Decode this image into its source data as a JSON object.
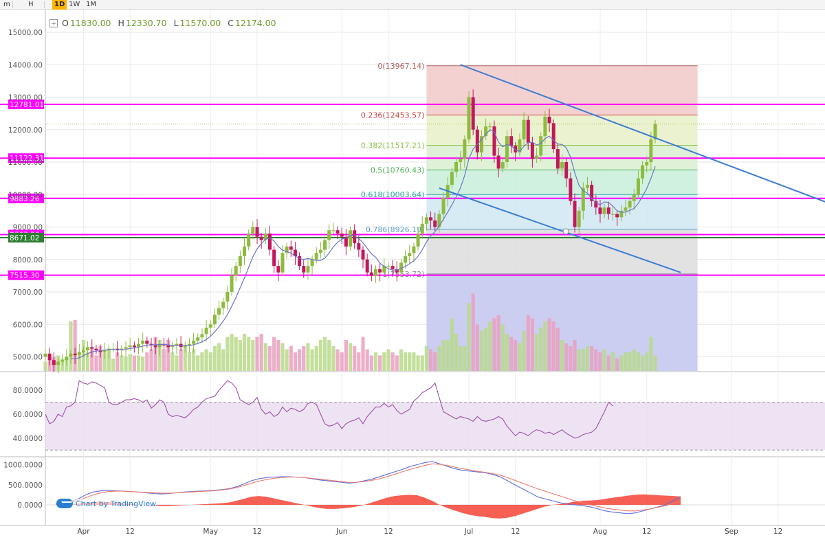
{
  "toolbar": {
    "items": [
      "m",
      "H",
      "1D",
      "1W",
      "1M"
    ],
    "active": "1D"
  },
  "ohlc": {
    "open_label": "O",
    "open": "11830.00",
    "high_label": "H",
    "high": "12330.70",
    "low_label": "L",
    "low": "11570.00",
    "close_label": "C",
    "close": "12174.00"
  },
  "watermark": "Chart by TradingView",
  "colors": {
    "up": "#8dbb3f",
    "down": "#c2185b",
    "level": "#ff00ff",
    "trend": "#3a7bd5",
    "ma": "#6a75c9"
  },
  "chart_data": [
    {
      "type": "candlestick",
      "title": "",
      "ylim": [
        4700,
        15500
      ],
      "y_ticks": [
        "15000.00",
        "14000.00",
        "13000.00",
        "12000.00",
        "11000.00",
        "10000.00",
        "9000.00",
        "8000.00",
        "7000.00",
        "6000.00",
        "5000.00"
      ],
      "y_tick_values": [
        15000,
        14000,
        13000,
        12000,
        11000,
        10000,
        9000,
        8000,
        7000,
        6000,
        5000
      ],
      "x_range_days": [
        0,
        150
      ],
      "x_ticks": [
        {
          "day": 9,
          "label": "Apr"
        },
        {
          "day": 20,
          "label": "12"
        },
        {
          "day": 39,
          "label": "May"
        },
        {
          "day": 50,
          "label": "12"
        },
        {
          "day": 70,
          "label": "Jun"
        },
        {
          "day": 81,
          "label": "12"
        },
        {
          "day": 100,
          "label": "Jul"
        },
        {
          "day": 111,
          "label": "12"
        },
        {
          "day": 131,
          "label": "Aug"
        },
        {
          "day": 142,
          "label": "12"
        },
        {
          "day": 162,
          "label": "Sep"
        },
        {
          "day": 173,
          "label": "12"
        }
      ],
      "candles_close": [
        5100,
        4900,
        4750,
        4850,
        4900,
        5000,
        5100,
        5050,
        5150,
        5200,
        5300,
        5250,
        5200,
        5150,
        5200,
        5250,
        5250,
        5200,
        5250,
        5300,
        5350,
        5300,
        5400,
        5500,
        5400,
        5350,
        5300,
        5400,
        5350,
        5300,
        5350,
        5400,
        5300,
        5350,
        5400,
        5500,
        5600,
        5700,
        5900,
        6000,
        6300,
        6500,
        6700,
        7000,
        7500,
        7800,
        8100,
        8400,
        8800,
        9000,
        8700,
        8600,
        8800,
        8300,
        7800,
        7600,
        8200,
        8400,
        8300,
        8100,
        7800,
        7600,
        7800,
        8000,
        8200,
        8300,
        8600,
        8900,
        8900,
        8800,
        8700,
        8400,
        8900,
        8500,
        8300,
        8000,
        7600,
        7500,
        7700,
        7600,
        7800,
        7800,
        7700,
        7600,
        7900,
        8100,
        8200,
        8400,
        8800,
        9100,
        9300,
        9200,
        9000,
        9400,
        9900,
        10300,
        10700,
        11000,
        11100,
        11700,
        13000,
        12000,
        11300,
        11800,
        12100,
        12100,
        11200,
        10800,
        11000,
        11800,
        11500,
        11300,
        11700,
        12300,
        11600,
        11100,
        11200,
        11800,
        12400,
        12200,
        11400,
        10800,
        11000,
        10500,
        9800,
        9000,
        9500,
        10200,
        10300,
        9800,
        9600,
        9400,
        9600,
        9400,
        9400,
        9300,
        9500,
        9600,
        9800,
        10000,
        10500,
        10900,
        11000,
        11700,
        12174
      ],
      "fib_levels": [
        {
          "ratio": "0",
          "price": 13967.14,
          "label": "0(13967.14)"
        },
        {
          "ratio": "0.236",
          "price": 12453.57,
          "label": "0.236(12453.57)"
        },
        {
          "ratio": "0.382",
          "price": 11517.21,
          "label": "0.382(11517.21)"
        },
        {
          "ratio": "0.5",
          "price": 10760.43,
          "label": "0.5(10760.43)"
        },
        {
          "ratio": "0.618",
          "price": 10003.64,
          "label": "0.618(10003.64)"
        },
        {
          "ratio": "0.786",
          "price": 8926.19,
          "label": "0.786(8926.19)"
        },
        {
          "ratio": "1",
          "price": 7553.72,
          "label": "1(7553.72)"
        }
      ],
      "fib_range_days": [
        90,
        154
      ],
      "horizontal_levels": [
        {
          "price": 12781.01,
          "label": "12781.01",
          "color": "#ff00ff"
        },
        {
          "price": 11122.31,
          "label": "11122.31",
          "color": "#ff00ff"
        },
        {
          "price": 9883.26,
          "label": "9883.26",
          "color": "#ff00ff"
        },
        {
          "price": 8767.36,
          "label": "8767.36",
          "color": "#ff00ff"
        },
        {
          "price": 8671.02,
          "label": "8671.02",
          "color": "#2e7d32"
        },
        {
          "price": 7515.3,
          "label": "7515.30",
          "color": "#ff00ff"
        }
      ],
      "partial_tick_label": "9883.26",
      "trendlines": [
        {
          "from": [
            98,
            14000
          ],
          "to": [
            200,
            9000
          ]
        },
        {
          "from": [
            93,
            10200
          ],
          "to": [
            150,
            7600
          ]
        }
      ],
      "current_price": 12174.0,
      "volume": [
        0.3,
        0.5,
        0.45,
        0.5,
        0.4,
        0.45,
        1.6,
        1.65,
        0.5,
        1.0,
        0.6,
        0.7,
        0.5,
        0.8,
        0.6,
        0.7,
        0.4,
        0.6,
        0.5,
        0.45,
        0.55,
        0.5,
        0.5,
        0.45,
        0.6,
        0.7,
        1.1,
        1.0,
        0.7,
        1.0,
        0.6,
        0.5,
        0.7,
        0.8,
        0.6,
        0.7,
        0.5,
        0.6,
        0.7,
        0.6,
        0.8,
        0.9,
        0.7,
        1.1,
        1.2,
        1.1,
        1.0,
        1.2,
        1.1,
        1.0,
        1.1,
        1.2,
        0.9,
        0.8,
        1.1,
        1.0,
        0.9,
        0.7,
        0.8,
        0.6,
        0.7,
        0.8,
        0.9,
        0.7,
        0.8,
        1.0,
        1.1,
        1.0,
        0.8,
        0.7,
        0.6,
        1.0,
        0.9,
        0.8,
        0.6,
        1.1,
        0.7,
        0.5,
        0.6,
        0.5,
        0.6,
        0.7,
        0.6,
        0.5,
        0.7,
        0.6,
        0.6,
        0.6,
        0.5,
        0.5,
        0.8,
        0.7,
        0.6,
        0.8,
        1.0,
        1.0,
        1.7,
        1.2,
        0.8,
        0.8,
        2.2,
        2.5,
        1.5,
        1.3,
        1.4,
        1.6,
        1.7,
        1.8,
        1.5,
        1.2,
        1.1,
        1.0,
        0.9,
        1.3,
        1.8,
        1.7,
        1.2,
        1.4,
        1.6,
        1.7,
        1.6,
        1.4,
        1.0,
        0.9,
        0.8,
        1.0,
        0.7,
        0.7,
        0.8,
        0.8,
        0.7,
        0.6,
        0.7,
        0.5,
        0.6,
        0.4,
        0.5,
        0.6,
        0.6,
        0.7,
        0.6,
        0.5,
        0.6,
        1.1,
        0.5
      ]
    },
    {
      "type": "line",
      "series": [
        {
          "name": "",
          "values": [
            60,
            52,
            54,
            60,
            58,
            66,
            67,
            70,
            88,
            86,
            85,
            87,
            86,
            84,
            82,
            70,
            68,
            68,
            70,
            72,
            72,
            73,
            72,
            70,
            72,
            65,
            68,
            72,
            70,
            60,
            58,
            59,
            58,
            57,
            60,
            64,
            66,
            70,
            73,
            74,
            75,
            80,
            84,
            88,
            86,
            82,
            72,
            70,
            68,
            70,
            74,
            64,
            60,
            62,
            58,
            60,
            66,
            62,
            65,
            64,
            62,
            64,
            69,
            70,
            68,
            60,
            52,
            50,
            51,
            53,
            48,
            52,
            54,
            55,
            57,
            52,
            58,
            62,
            66,
            66,
            69,
            66,
            68,
            63,
            60,
            62,
            64,
            71,
            74,
            78,
            80,
            82,
            86,
            74,
            62,
            60,
            58,
            56,
            58,
            57,
            56,
            54,
            58,
            55,
            54,
            55,
            56,
            58,
            56,
            50,
            46,
            42,
            45,
            44,
            42,
            45,
            47,
            46,
            44,
            45,
            43,
            45,
            47,
            44,
            42,
            40,
            41,
            43,
            44,
            45,
            48,
            55,
            62,
            70,
            67
          ]
        }
      ],
      "ylim": [
        25,
        95
      ],
      "y_ticks": [
        "80.0000",
        "60.0000",
        "40.0000"
      ],
      "y_tick_values": [
        80,
        60,
        40
      ],
      "band": [
        30,
        70
      ]
    },
    {
      "type": "line",
      "series": [
        {
          "name": "",
          "values": [
            20,
            40,
            80,
            150,
            250,
            320,
            350,
            360,
            350,
            340,
            330,
            320,
            300,
            280,
            270,
            280,
            300,
            320,
            330,
            340,
            350,
            360,
            380,
            400,
            450,
            520,
            600,
            650,
            680,
            690,
            700,
            700,
            690,
            680,
            650,
            620,
            600,
            580,
            560,
            540,
            560,
            600,
            640,
            700,
            760,
            820,
            880,
            950,
            1000,
            1050,
            1080,
            1020,
            960,
            900,
            860,
            840,
            820,
            800,
            760,
            700,
            600,
            500,
            400,
            300,
            200,
            150,
            100,
            50,
            20,
            0,
            -20,
            -50,
            -100,
            -150,
            -180,
            -200,
            -220,
            -200,
            -150,
            -100,
            -50,
            0,
            100,
            200
          ]
        },
        {
          "name": "",
          "values": [
            10,
            30,
            60,
            110,
            180,
            250,
            300,
            330,
            340,
            340,
            330,
            320,
            310,
            300,
            290,
            290,
            300,
            310,
            320,
            330,
            340,
            350,
            370,
            390,
            430,
            480,
            540,
            590,
            630,
            660,
            680,
            690,
            690,
            680,
            660,
            640,
            620,
            600,
            580,
            560,
            560,
            580,
            610,
            650,
            700,
            760,
            820,
            880,
            930,
            980,
            1020,
            1010,
            980,
            940,
            900,
            870,
            840,
            810,
            780,
            740,
            680,
            610,
            540,
            470,
            400,
            340,
            280,
            220,
            160,
            100,
            50,
            0,
            -40,
            -80,
            -110,
            -130,
            -150,
            -150,
            -130,
            -100,
            -60,
            -20,
            30,
            80
          ]
        }
      ],
      "histogram": [
        10,
        15,
        20,
        30,
        50,
        70,
        80,
        70,
        50,
        30,
        20,
        10,
        -10,
        -20,
        -30,
        -30,
        -20,
        -10,
        0,
        10,
        20,
        30,
        40,
        60,
        100,
        150,
        200,
        220,
        200,
        160,
        120,
        80,
        40,
        0,
        -40,
        -80,
        -100,
        -100,
        -90,
        -70,
        -40,
        0,
        60,
        120,
        180,
        220,
        240,
        250,
        240,
        180,
        100,
        0,
        -80,
        -140,
        -200,
        -250,
        -280,
        -300,
        -330,
        -340,
        -320,
        -280,
        -220,
        -160,
        -100,
        -40,
        0,
        20,
        50,
        80,
        100,
        110,
        120,
        150,
        180,
        200,
        230,
        250,
        260,
        250,
        240,
        230,
        220,
        210
      ]
    }
  ],
  "macd_ticks": [
    "1000.0000",
    "500.0000",
    "0.0000"
  ],
  "macd_tick_values": [
    1000,
    500,
    0
  ]
}
